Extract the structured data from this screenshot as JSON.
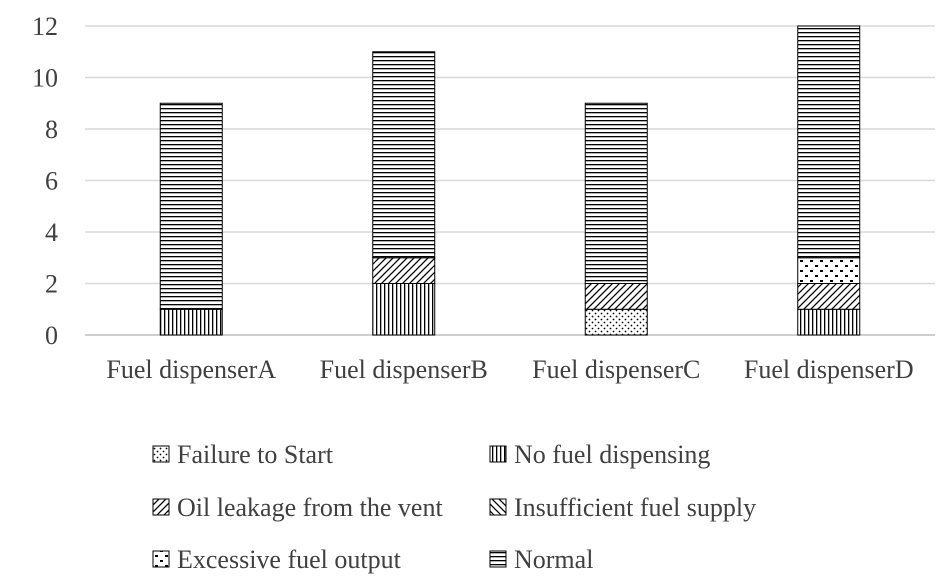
{
  "chart_data": {
    "type": "bar",
    "stacked": true,
    "categories": [
      "Fuel dispenserA",
      "Fuel dispenserB",
      "Fuel dispenserC",
      "Fuel dispenserD"
    ],
    "series": [
      {
        "name": "Failure to Start",
        "values": [
          0,
          0,
          1,
          0
        ],
        "pattern": "dots"
      },
      {
        "name": "No fuel dispensing",
        "values": [
          1,
          2,
          0,
          1
        ],
        "pattern": "vertical"
      },
      {
        "name": "Oil leakage from the vent",
        "values": [
          0,
          1,
          1,
          1
        ],
        "pattern": "diagonal-up"
      },
      {
        "name": "Insufficient fuel supply",
        "values": [
          0,
          0,
          0,
          0
        ],
        "pattern": "diagonal-down"
      },
      {
        "name": "Excessive fuel output",
        "values": [
          0,
          0,
          0,
          1
        ],
        "pattern": "checker"
      },
      {
        "name": "Normal",
        "values": [
          8,
          8,
          7,
          9
        ],
        "pattern": "horizontal"
      }
    ],
    "ylim": [
      0,
      12
    ],
    "yticks": [
      "0",
      "2",
      "4",
      "6",
      "8",
      "10",
      "12"
    ],
    "grid": true,
    "legend_position": "bottom",
    "colors": {
      "ink": "#000000",
      "grid": "#d9d9d9",
      "text": "#404040"
    }
  }
}
